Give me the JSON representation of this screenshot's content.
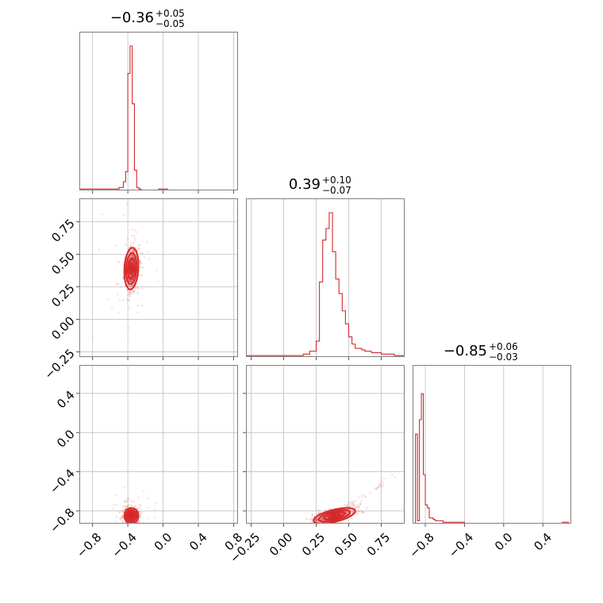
{
  "chart_data": {
    "type": "corner",
    "color": "#d62728",
    "parameters": [
      {
        "median": "−0.36",
        "plus": "+0.05",
        "minus": "−0.05",
        "center": -0.36,
        "range": [
          -0.95,
          0.85
        ]
      },
      {
        "median": "0.39",
        "plus": "+0.10",
        "minus": "−0.07",
        "center": 0.39,
        "range": [
          -0.29,
          0.93
        ]
      },
      {
        "median": "−0.85",
        "plus": "+0.06",
        "minus": "−0.03",
        "center": -0.85,
        "range": [
          -0.93,
          0.69
        ]
      }
    ],
    "ticks": [
      [
        "−0.8",
        "−0.4",
        "0.0",
        "0.4",
        "0.8"
      ],
      [
        "−0.25",
        "0.00",
        "0.25",
        "0.50",
        "0.75"
      ],
      [
        "−0.8",
        "−0.4",
        "0.0",
        "0.4"
      ]
    ],
    "tick_values": [
      [
        -0.8,
        -0.4,
        0.0,
        0.4,
        0.8
      ],
      [
        -0.25,
        0.0,
        0.25,
        0.5,
        0.75
      ],
      [
        -0.8,
        -0.4,
        0.0,
        0.4
      ]
    ],
    "histograms": [
      {
        "edges": [
          -0.95,
          -0.9,
          -0.85,
          -0.8,
          -0.75,
          -0.7,
          -0.65,
          -0.6,
          -0.55,
          -0.5,
          -0.45,
          -0.425,
          -0.4,
          -0.375,
          -0.35,
          -0.325,
          -0.3,
          -0.275,
          -0.25,
          -0.2,
          -0.15,
          -0.1,
          -0.05,
          0.0,
          0.05,
          0.85
        ],
        "counts": [
          0.01,
          0.01,
          0.01,
          0.01,
          0.01,
          0.01,
          0.01,
          0.01,
          0.01,
          0.02,
          0.06,
          0.13,
          0.81,
          1.0,
          0.6,
          0.14,
          0.02,
          0.01,
          0.0,
          0.0,
          0.0,
          0.0,
          0.01,
          0.01,
          0.0
        ]
      },
      {
        "edges": [
          -0.29,
          -0.25,
          -0.2,
          -0.15,
          -0.1,
          -0.05,
          0.0,
          0.05,
          0.1,
          0.15,
          0.2,
          0.25,
          0.275,
          0.3,
          0.325,
          0.35,
          0.375,
          0.4,
          0.425,
          0.45,
          0.475,
          0.5,
          0.525,
          0.55,
          0.575,
          0.6,
          0.625,
          0.65,
          0.675,
          0.7,
          0.75,
          0.8,
          0.85,
          0.93
        ],
        "counts": [
          0.01,
          0.01,
          0.01,
          0.01,
          0.01,
          0.01,
          0.01,
          0.01,
          0.01,
          0.02,
          0.04,
          0.11,
          0.52,
          0.81,
          0.89,
          1.0,
          0.73,
          0.54,
          0.44,
          0.32,
          0.23,
          0.14,
          0.09,
          0.06,
          0.06,
          0.05,
          0.04,
          0.04,
          0.03,
          0.03,
          0.02,
          0.02,
          0.01
        ]
      },
      {
        "edges": [
          -0.93,
          -0.9,
          -0.88,
          -0.86,
          -0.84,
          -0.82,
          -0.8,
          -0.78,
          -0.76,
          -0.74,
          -0.72,
          -0.7,
          -0.66,
          -0.62,
          -0.58,
          -0.54,
          -0.5,
          -0.45,
          -0.4,
          0.6,
          0.66,
          0.69
        ],
        "counts": [
          0.0,
          0.62,
          0.02,
          0.72,
          0.9,
          0.34,
          0.13,
          0.11,
          0.04,
          0.04,
          0.03,
          0.02,
          0.02,
          0.01,
          0.01,
          0.01,
          0.01,
          0.01,
          0.0,
          0.01,
          0.0
        ]
      }
    ],
    "pairs": [
      {
        "row": 1,
        "col": 0,
        "cx": -0.36,
        "cy": 0.39,
        "sx": 0.04,
        "sy": 0.08,
        "rho": 0.15
      },
      {
        "row": 2,
        "col": 0,
        "cx": -0.36,
        "cy": -0.85,
        "sx": 0.04,
        "sy": 0.04,
        "rho": 0.0
      },
      {
        "row": 2,
        "col": 1,
        "cx": 0.39,
        "cy": -0.85,
        "sx": 0.08,
        "sy": 0.04,
        "rho": 0.6
      }
    ]
  }
}
